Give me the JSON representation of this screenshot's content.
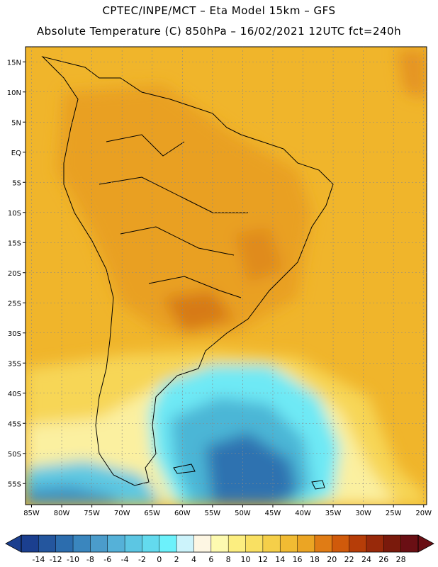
{
  "title_line1": "CPTEC/INPE/MCT –  Eta Model 15km – GFS",
  "title_line2": "Absolute Temperature (C) 850hPa – 16/02/2021 12UTC fct=240h",
  "map": {
    "lon_labels": [
      "85W",
      "80W",
      "75W",
      "70W",
      "65W",
      "60W",
      "55W",
      "50W",
      "45W",
      "40W",
      "35W",
      "30W",
      "25W",
      "20W"
    ],
    "lat_labels": [
      "15N",
      "10N",
      "5N",
      "EQ",
      "5S",
      "10S",
      "15S",
      "20S",
      "25S",
      "30S",
      "35S",
      "40S",
      "45S",
      "50S",
      "55S"
    ]
  },
  "colorbar": {
    "labels": [
      "-14",
      "-12",
      "-10",
      "-8",
      "-6",
      "-4",
      "-2",
      "0",
      "2",
      "4",
      "6",
      "8",
      "10",
      "12",
      "14",
      "16",
      "18",
      "20",
      "22",
      "24",
      "26",
      "28"
    ],
    "colors": [
      "#1b3f8f",
      "#24569e",
      "#2c6dae",
      "#3a86be",
      "#4b9ccb",
      "#55b1d8",
      "#5cc6e3",
      "#63daee",
      "#6cf1fb",
      "#ccf3fb",
      "#fdf6e3",
      "#fdfab0",
      "#fcee80",
      "#f9e062",
      "#f5cf49",
      "#f1bb33",
      "#eba524",
      "#e07c15",
      "#d05a0b",
      "#b63d08",
      "#98290a",
      "#7a1a0c",
      "#6a0f14"
    ]
  }
}
